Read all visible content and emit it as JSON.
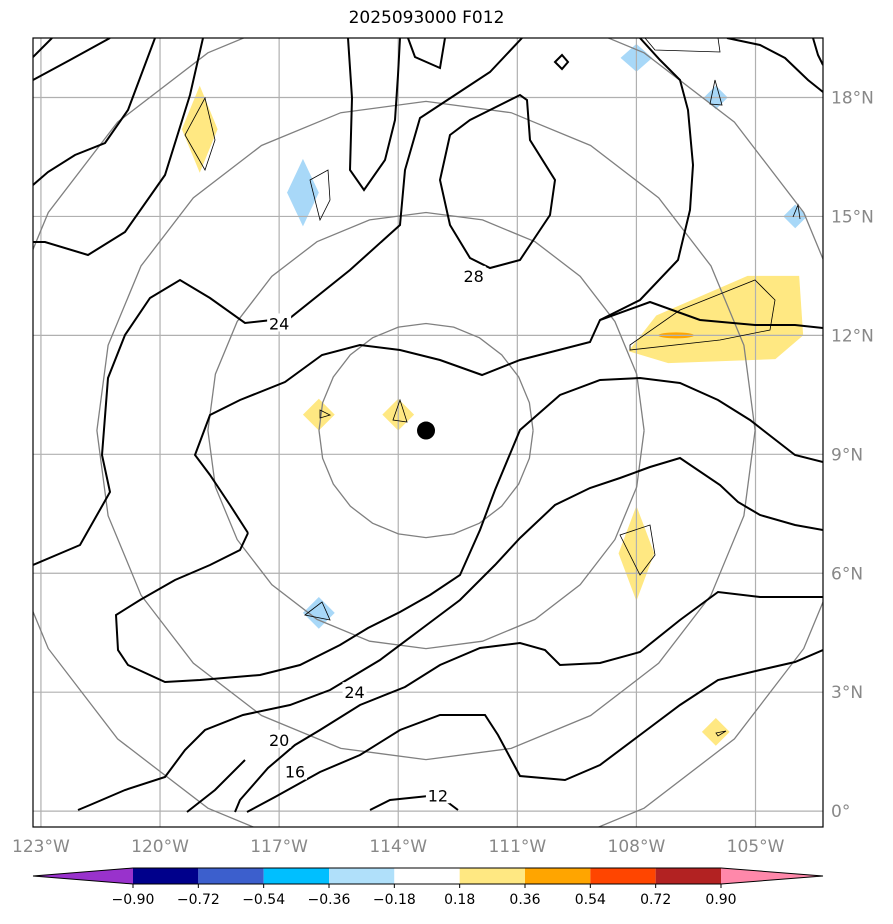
{
  "title": "2025093000 F012",
  "map": {
    "lon_range": [
      -123.2,
      -103.3
    ],
    "lat_range": [
      -0.4,
      19.5
    ],
    "lon_ticks": [
      -123,
      -120,
      -117,
      -114,
      -111,
      -108,
      -105
    ],
    "lon_tick_labels": [
      "123°W",
      "120°W",
      "117°W",
      "114°W",
      "111°W",
      "108°W",
      "105°W"
    ],
    "lat_ticks": [
      0,
      3,
      6,
      9,
      12,
      15,
      18
    ],
    "lat_tick_labels": [
      "0°",
      "3°N",
      "6°N",
      "9°N",
      "12°N",
      "15°N",
      "18°N"
    ],
    "grid": true,
    "center_marker": {
      "lon": -113.3,
      "lat": 9.6
    },
    "range_rings": [
      {
        "radius_deg": 2.7
      },
      {
        "radius_deg": 5.5
      },
      {
        "radius_deg": 8.3
      },
      {
        "radius_deg": 11
      }
    ],
    "contour_labels": [
      {
        "text": "28",
        "lon": -112.1,
        "lat": 13.5
      },
      {
        "text": "24",
        "lon": -117.0,
        "lat": 12.3
      },
      {
        "text": "24",
        "lon": -115.1,
        "lat": 3.0
      },
      {
        "text": "20",
        "lon": -117.0,
        "lat": 1.8
      },
      {
        "text": "16",
        "lon": -116.6,
        "lat": 1.0
      },
      {
        "text": "12",
        "lon": -113.0,
        "lat": 0.4
      }
    ],
    "shaded_patches": [
      {
        "color": "#ffe882",
        "lon": -119.0,
        "lat": 17.2,
        "w": 0.9,
        "h": 2.2
      },
      {
        "color": "#a8d8f8",
        "lon": -116.4,
        "lat": 15.6,
        "w": 0.8,
        "h": 1.7
      },
      {
        "color": "#a8d8f8",
        "lon": -108.0,
        "lat": 19.0,
        "w": 0.8,
        "h": 0.7
      },
      {
        "color": "#a8d8f8",
        "lon": -106.0,
        "lat": 18.0,
        "w": 0.6,
        "h": 0.6
      },
      {
        "color": "#a8d8f8",
        "lon": -104.0,
        "lat": 15.0,
        "w": 0.6,
        "h": 0.6
      },
      {
        "color": "#ffe882",
        "lon": -116.0,
        "lat": 10.0,
        "w": 0.8,
        "h": 0.8
      },
      {
        "color": "#ffe882",
        "lon": -114.0,
        "lat": 10.0,
        "w": 0.8,
        "h": 0.8
      },
      {
        "color": "#ffe882",
        "lon": -108.0,
        "lat": 6.5,
        "w": 0.9,
        "h": 2.4
      },
      {
        "color": "#a8d8f8",
        "lon": -116.0,
        "lat": 5.0,
        "w": 0.8,
        "h": 0.8
      },
      {
        "color": "#ffe882",
        "lon": -106.0,
        "lat": 2.0,
        "w": 0.7,
        "h": 0.7
      },
      {
        "color": "#ffa500",
        "lon": -107.0,
        "lat": 12.0,
        "w": 0.8,
        "h": 0.2
      }
    ]
  },
  "colorbar": {
    "colors": [
      "#9932cc",
      "#00008b",
      "#3c5fcd",
      "#00bfff",
      "#b0e0fa",
      "#ffffff",
      "#ffe882",
      "#ffa500",
      "#ff4500",
      "#b22222",
      "#ff88aa"
    ],
    "tick_labels": [
      "−0.90",
      "−0.72",
      "−0.54",
      "−0.36",
      "−0.18",
      "0.18",
      "0.36",
      "0.54",
      "0.72",
      "0.90"
    ]
  }
}
